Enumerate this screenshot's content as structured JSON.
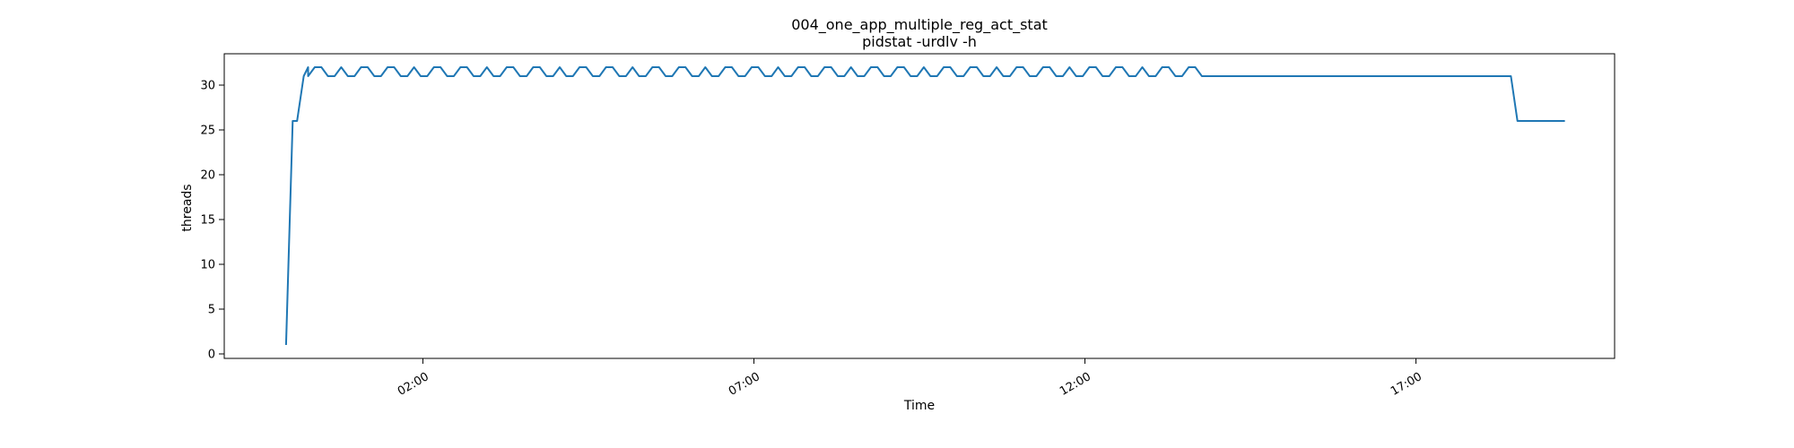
{
  "chart_data": {
    "type": "line",
    "title": "004_one_app_multiple_reg_act_stat",
    "subtitle": "pidstat -urdlv -h",
    "xlabel": "Time",
    "ylabel": "threads",
    "x_ticks": [
      "02:00",
      "07:00",
      "12:00",
      "17:00"
    ],
    "y_ticks": [
      0,
      5,
      10,
      15,
      20,
      25,
      30
    ],
    "xlim": [
      "2000-01-01T23:00",
      "2000-01-02T20:00"
    ],
    "ylim": [
      -0.5,
      33.5
    ],
    "grid": false,
    "line_color": "#1f77b4",
    "series": [
      {
        "points": [
          [
            "2000-01-01T23:56",
            1
          ],
          [
            "2000-01-02T00:02",
            26
          ],
          [
            "2000-01-02T00:06",
            26
          ],
          [
            "2000-01-02T00:12",
            31
          ],
          [
            "2000-01-02T00:16",
            32
          ],
          [
            "2000-01-02T00:30",
            "oscillating 31-32"
          ],
          [
            "2000-01-02T13:50",
            31
          ],
          [
            "2000-01-02T18:26",
            31
          ],
          [
            "2000-01-02T18:32",
            26
          ],
          [
            "2000-01-02T19:15",
            26
          ]
        ],
        "pattern": "oscillating",
        "oscillation": {
          "start": "2000-01-02T00:16",
          "end": "2000-01-02T13:50",
          "low": 31,
          "high": 32
        }
      }
    ]
  }
}
